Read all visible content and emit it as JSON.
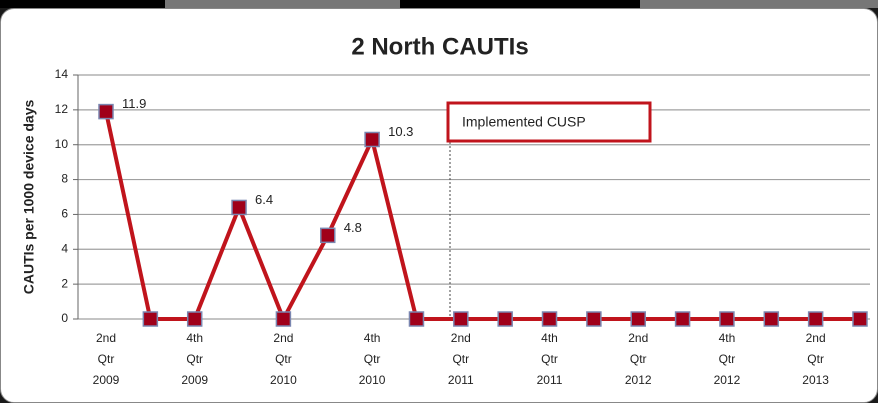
{
  "chart_data": {
    "type": "line",
    "title": "2 North CAUTIs",
    "y_label": "CAUTIs per 1000 device days",
    "annotation": "Implemented CUSP",
    "categories": [
      "2nd\nQtr\n2009",
      null,
      "4th\nQtr\n2009",
      null,
      "2nd\nQtr\n2010",
      null,
      "4th\nQtr\n2010",
      null,
      "2nd\nQtr\n2011",
      null,
      "4th\nQtr\n2011",
      null,
      "2nd\nQtr\n2012",
      null,
      "4th\nQtr\n2012",
      null,
      "2nd\nQtr\n2013",
      null
    ],
    "series": [
      {
        "name": "2 North",
        "color": "#c0141c",
        "values": [
          11.9,
          0,
          0,
          6.4,
          0,
          4.8,
          10.3,
          0,
          0,
          0,
          0,
          0,
          0,
          0,
          0,
          0,
          0,
          0
        ]
      }
    ],
    "ylim": [
      0,
      14
    ],
    "yticks": [
      0,
      2,
      4,
      6,
      8,
      10,
      12,
      14
    ],
    "grid": true
  }
}
